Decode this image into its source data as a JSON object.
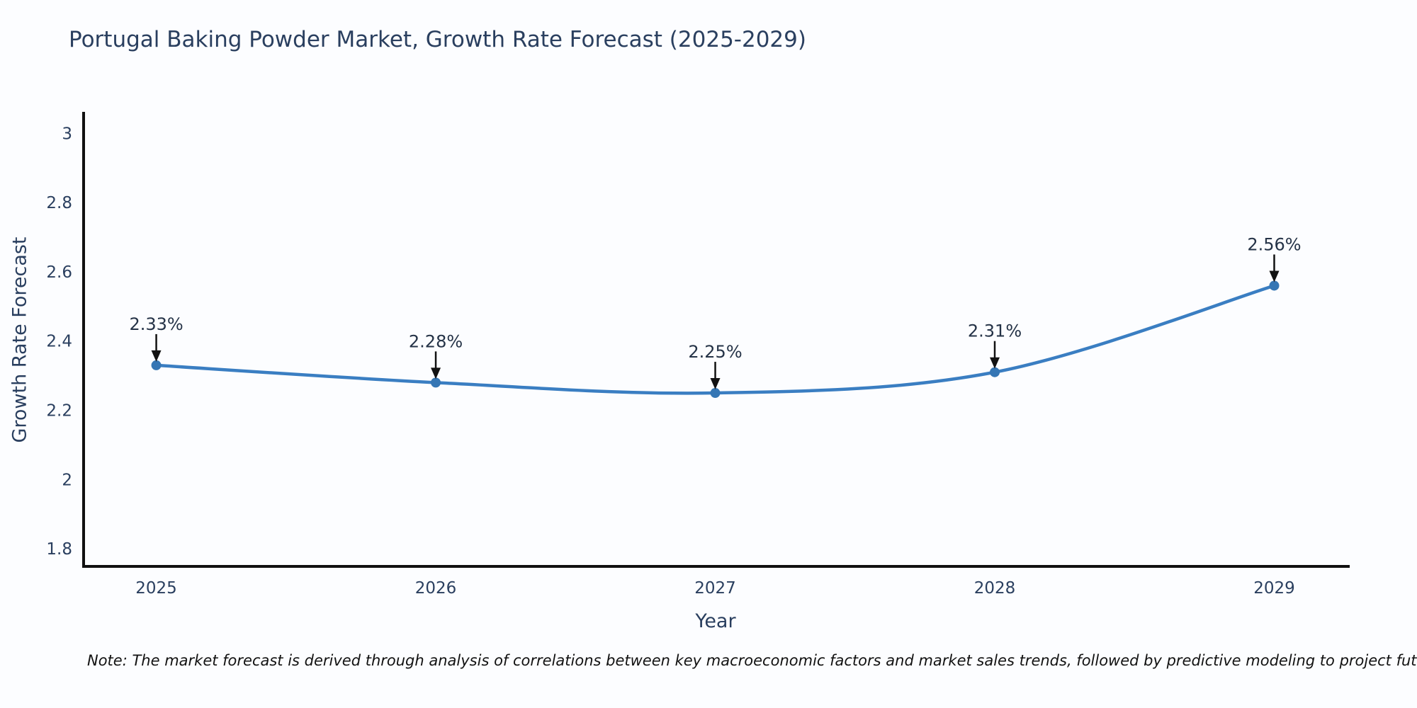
{
  "header": {
    "title": "Portugal Baking Powder Market, Growth Rate Forecast (2025-2029)"
  },
  "footnote": {
    "text": "Note: The market forecast is derived through analysis of correlations between key macroeconomic factors and market sales trends, followed by predictive modeling to project future sales"
  },
  "colors": {
    "axis": "#101010",
    "arrow": "#121212",
    "text_dark": "#2a3f5f",
    "background": "#fcfdff"
  },
  "chart_data": {
    "type": "line",
    "title": "Portugal Baking Powder Market, Growth Rate Forecast (2025-2029)",
    "xlabel": "Year",
    "ylabel": "Growth Rate Forecast",
    "x": [
      2025,
      2026,
      2027,
      2028,
      2029
    ],
    "y": [
      2.33,
      2.28,
      2.25,
      2.31,
      2.56
    ],
    "point_labels": [
      "2.33%",
      "2.28%",
      "2.25%",
      "2.31%",
      "2.56%"
    ],
    "xticks": [
      2025,
      2026,
      2027,
      2028,
      2029
    ],
    "xtick_labels": [
      "2025",
      "2026",
      "2027",
      "2028",
      "2029"
    ],
    "yticks": [
      1.8,
      2.0,
      2.2,
      2.4,
      2.6,
      2.8,
      3.0
    ],
    "ytick_labels": [
      "1.8",
      "2",
      "2.2",
      "2.4",
      "2.6",
      "2.8",
      "3"
    ],
    "xlim": [
      2024.74,
      2029.27
    ],
    "ylim": [
      1.749,
      3.062
    ],
    "grid": false,
    "legend": "none",
    "line_shape": "spline",
    "line_color": "#3a7ec2",
    "marker_color": "#3576b4"
  }
}
